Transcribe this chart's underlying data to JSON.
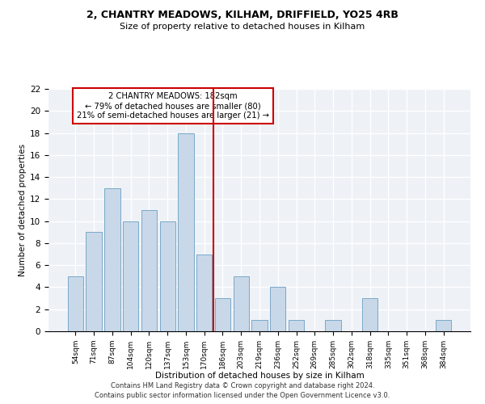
{
  "title1": "2, CHANTRY MEADOWS, KILHAM, DRIFFIELD, YO25 4RB",
  "title2": "Size of property relative to detached houses in Kilham",
  "xlabel": "Distribution of detached houses by size in Kilham",
  "ylabel": "Number of detached properties",
  "bar_labels": [
    "54sqm",
    "71sqm",
    "87sqm",
    "104sqm",
    "120sqm",
    "137sqm",
    "153sqm",
    "170sqm",
    "186sqm",
    "203sqm",
    "219sqm",
    "236sqm",
    "252sqm",
    "269sqm",
    "285sqm",
    "302sqm",
    "318sqm",
    "335sqm",
    "351sqm",
    "368sqm",
    "384sqm"
  ],
  "bar_values": [
    5,
    9,
    13,
    10,
    11,
    10,
    18,
    7,
    3,
    5,
    1,
    4,
    1,
    0,
    1,
    0,
    3,
    0,
    0,
    0,
    1
  ],
  "bar_color": "#c8d8e8",
  "bar_edgecolor": "#7aa8c8",
  "vline_x": 7.5,
  "vline_color": "#cc0000",
  "annotation_title": "2 CHANTRY MEADOWS: 182sqm",
  "annotation_line1": "← 79% of detached houses are smaller (80)",
  "annotation_line2": "21% of semi-detached houses are larger (21) →",
  "annotation_box_edgecolor": "#cc0000",
  "ylim": [
    0,
    22
  ],
  "yticks": [
    0,
    2,
    4,
    6,
    8,
    10,
    12,
    14,
    16,
    18,
    20,
    22
  ],
  "footer1": "Contains HM Land Registry data © Crown copyright and database right 2024.",
  "footer2": "Contains public sector information licensed under the Open Government Licence v3.0.",
  "background_color": "#eef2f7"
}
